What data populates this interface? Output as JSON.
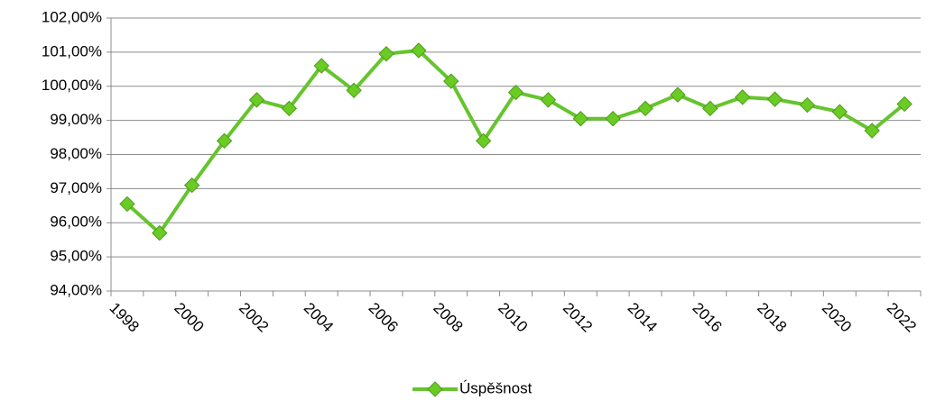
{
  "chart_data": {
    "type": "line",
    "categories": [
      "1998",
      null,
      "2000",
      null,
      "2002",
      null,
      "2004",
      null,
      "2006",
      null,
      "2008",
      null,
      "2010",
      null,
      "2012",
      null,
      "2014",
      null,
      "2016",
      null,
      "2018",
      null,
      "2020",
      null,
      "2022"
    ],
    "series": [
      {
        "name": "Úspěšnost",
        "color": "#66c42e",
        "marker_color": "#6acc22",
        "values": [
          96.55,
          95.7,
          97.1,
          98.4,
          99.6,
          99.35,
          100.6,
          99.88,
          100.95,
          101.05,
          100.15,
          98.4,
          99.82,
          99.6,
          99.05,
          99.05,
          99.35,
          99.75,
          99.35,
          99.68,
          99.62,
          99.45,
          99.25,
          98.7,
          99.48
        ]
      }
    ],
    "ylim": [
      94,
      102
    ],
    "yticks": [
      {
        "value": 94,
        "label": "94,00%"
      },
      {
        "value": 95,
        "label": "95,00%"
      },
      {
        "value": 96,
        "label": "96,00%"
      },
      {
        "value": 97,
        "label": "97,00%"
      },
      {
        "value": 98,
        "label": "98,00%"
      },
      {
        "value": 99,
        "label": "99,00%"
      },
      {
        "value": 100,
        "label": "100,00%"
      },
      {
        "value": 101,
        "label": "101,00%"
      },
      {
        "value": 102,
        "label": "102,00%"
      }
    ],
    "grid": true,
    "legend": "bottom"
  }
}
